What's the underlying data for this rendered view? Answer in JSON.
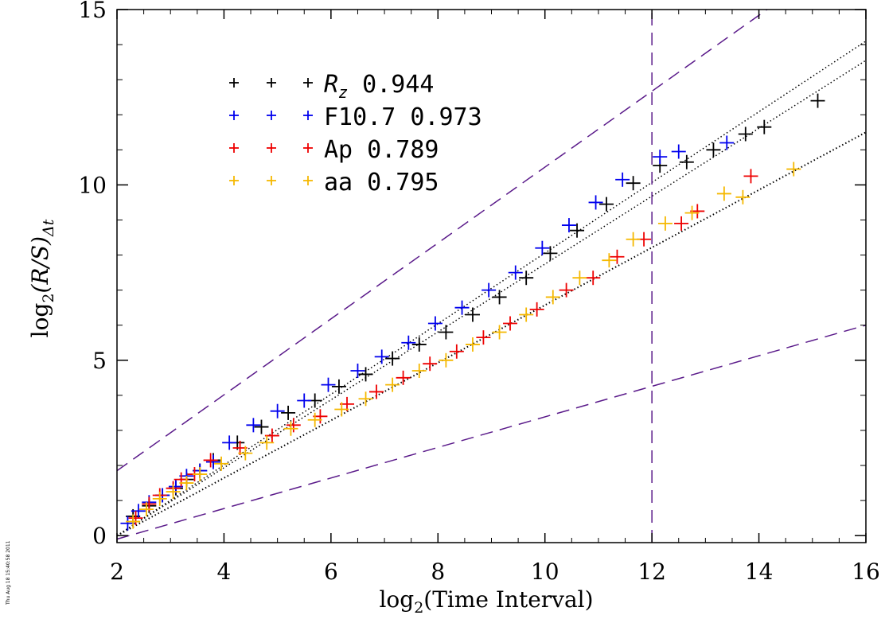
{
  "chart_data": {
    "type": "scatter",
    "xlabel_prefix": "log",
    "xlabel_sub": "2",
    "xlabel_rest": "(Time Interval)",
    "ylabel_prefix": "log",
    "ylabel_sub": "2",
    "ylabel_mid": "(R/S)",
    "ylabel_sub2": "Δt",
    "xlim": [
      2,
      16
    ],
    "ylim": [
      -0.2,
      15
    ],
    "xticks": [
      2,
      4,
      6,
      8,
      10,
      12,
      14,
      16
    ],
    "yticks": [
      0,
      5,
      10,
      15
    ],
    "grid": false,
    "legend_position": "top-left",
    "stamp": "Thu Aug 18 15:40:58 2011",
    "series": [
      {
        "name_main": "R",
        "name_sub": "z",
        "value": "0.944",
        "color": "#000000",
        "x": [
          2.3,
          2.6,
          2.85,
          3.1,
          3.3,
          3.55,
          3.8,
          4.25,
          4.7,
          5.2,
          5.7,
          6.15,
          6.65,
          7.15,
          7.65,
          8.15,
          8.65,
          9.15,
          9.65,
          10.1,
          10.6,
          11.15,
          11.65,
          12.15,
          12.65,
          13.15,
          13.75,
          14.1,
          15.1
        ],
        "y": [
          0.55,
          0.85,
          1.15,
          1.35,
          1.6,
          1.85,
          2.15,
          2.65,
          3.1,
          3.5,
          3.85,
          4.25,
          4.6,
          5.05,
          5.45,
          5.8,
          6.3,
          6.8,
          7.35,
          8.05,
          8.7,
          9.45,
          10.05,
          10.55,
          10.65,
          11.0,
          11.45,
          11.65,
          12.4
        ]
      },
      {
        "name_main": "F10.7",
        "name_sub": "",
        "value": "0.973",
        "color": "#0000ee",
        "x": [
          2.2,
          2.4,
          2.6,
          2.85,
          3.1,
          3.3,
          3.55,
          3.8,
          4.1,
          4.55,
          5.0,
          5.5,
          5.95,
          6.5,
          6.95,
          7.45,
          7.95,
          8.45,
          8.95,
          9.45,
          9.95,
          10.45,
          10.95,
          11.45,
          12.15,
          12.5,
          13.4
        ],
        "y": [
          0.35,
          0.7,
          0.95,
          1.15,
          1.4,
          1.7,
          1.85,
          2.1,
          2.65,
          3.15,
          3.55,
          3.85,
          4.3,
          4.7,
          5.1,
          5.5,
          6.05,
          6.5,
          7.0,
          7.5,
          8.2,
          8.85,
          9.5,
          10.15,
          10.8,
          10.95,
          11.2
        ]
      },
      {
        "name_main": "Ap",
        "name_sub": "",
        "value": "0.789",
        "color": "#ee0000",
        "x": [
          2.35,
          2.6,
          2.8,
          3.05,
          3.2,
          3.45,
          3.75,
          4.3,
          4.9,
          5.3,
          5.8,
          6.3,
          6.85,
          7.35,
          7.85,
          8.35,
          8.85,
          9.35,
          9.85,
          10.4,
          10.9,
          11.35,
          11.85,
          12.55,
          12.85,
          13.85
        ],
        "y": [
          0.5,
          0.9,
          1.15,
          1.35,
          1.6,
          1.75,
          2.15,
          2.5,
          2.85,
          3.15,
          3.4,
          3.75,
          4.1,
          4.5,
          4.9,
          5.25,
          5.65,
          6.05,
          6.45,
          7.0,
          7.35,
          7.95,
          8.45,
          8.9,
          9.25,
          10.25
        ]
      },
      {
        "name_main": "aa",
        "name_sub": "",
        "value": "0.795",
        "color": "#f5b800",
        "x": [
          2.3,
          2.55,
          2.8,
          3.05,
          3.3,
          3.55,
          3.95,
          4.4,
          4.8,
          5.25,
          5.7,
          6.2,
          6.65,
          7.15,
          7.65,
          8.15,
          8.65,
          9.15,
          9.65,
          10.15,
          10.65,
          11.2,
          11.65,
          12.25,
          12.75,
          13.35,
          13.7,
          14.65
        ],
        "y": [
          0.4,
          0.75,
          1.05,
          1.25,
          1.5,
          1.75,
          2.05,
          2.35,
          2.65,
          3.05,
          3.3,
          3.6,
          3.9,
          4.3,
          4.7,
          5.0,
          5.45,
          5.8,
          6.3,
          6.8,
          7.35,
          7.85,
          8.45,
          8.9,
          9.2,
          9.75,
          9.65,
          10.45
        ]
      }
    ],
    "dotted_lines": [
      {
        "x": [
          2,
          16
        ],
        "y": [
          0.0,
          14.1
        ]
      },
      {
        "x": [
          2,
          16
        ],
        "y": [
          0.0,
          13.55
        ]
      },
      {
        "x": [
          2,
          16
        ],
        "y": [
          0.0,
          11.5
        ]
      }
    ],
    "dashed_lines": [
      {
        "x": [
          2,
          16
        ],
        "y": [
          1.85,
          17.0
        ]
      },
      {
        "x": [
          2,
          16
        ],
        "y": [
          -0.1,
          6.0
        ]
      },
      {
        "x": [
          12,
          12
        ],
        "y": [
          -0.2,
          15
        ]
      }
    ],
    "reference_line_color": "#5a1a8a"
  }
}
